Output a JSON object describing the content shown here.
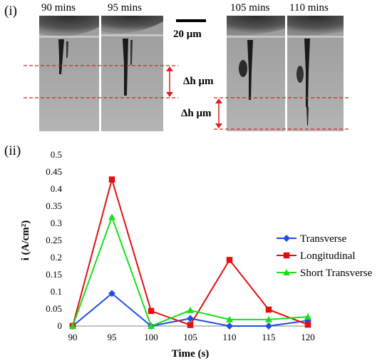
{
  "panel_i_label": "(i)",
  "panel_ii_label": "(ii)",
  "micrographs": {
    "frame_labels": [
      "90 mins",
      "95 mins",
      "105 mins",
      "110 mins"
    ],
    "scale_bar_label": "20 μm",
    "delta_h_label_1": "Δh μm",
    "delta_h_label_2": "Δh μm",
    "annotation_color": "#e02020"
  },
  "chart_data": {
    "type": "line",
    "xlabel": "Time (s)",
    "ylabel": "i (A/cm²)",
    "x": [
      90,
      95,
      100,
      105,
      110,
      115,
      120
    ],
    "xlim": [
      90,
      120
    ],
    "ylim": [
      0,
      0.5
    ],
    "xticks": [
      "90",
      "95",
      "100",
      "105",
      "110",
      "115",
      "120"
    ],
    "yticks": [
      "0",
      "0.05",
      "0.1",
      "0.15",
      "0.2",
      "0.25",
      "0.3",
      "0.35",
      "0.4",
      "0.45",
      "0.5"
    ],
    "grid": false,
    "legend_position": "right",
    "series": [
      {
        "name": "Transverse",
        "color": "#1f4fe0",
        "marker": "diamond",
        "values": [
          0.0,
          0.095,
          0.0,
          0.022,
          0.0,
          0.0,
          0.016
        ]
      },
      {
        "name": "Longitudinal",
        "color": "#e01010",
        "marker": "square",
        "values": [
          0.0,
          0.428,
          0.044,
          0.003,
          0.193,
          0.048,
          0.004
        ]
      },
      {
        "name": "Short Transverse",
        "color": "#19e019",
        "marker": "triangle",
        "values": [
          0.0,
          0.318,
          0.0,
          0.046,
          0.019,
          0.019,
          0.027
        ]
      }
    ]
  }
}
